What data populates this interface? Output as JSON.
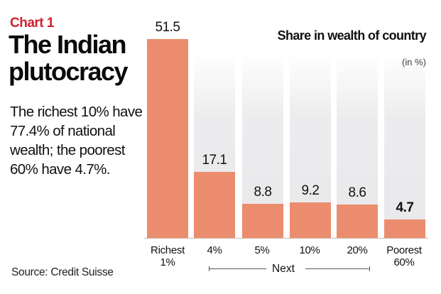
{
  "header": {
    "kicker": "Chart 1",
    "title": "The Indian plutocracy",
    "description": "The richest 10% have 77.4% of national wealth; the poorest 60% have 4.7%."
  },
  "source": "Source: Credit Suisse",
  "colors": {
    "kicker": "#d0202e",
    "bar": "#ec8c6e",
    "background_column": "#ececee"
  },
  "chart_data": {
    "type": "bar",
    "title": "Share in wealth of country",
    "unit_label": "(in %)",
    "categories": [
      "Richest 1%",
      "4%",
      "5%",
      "10%",
      "20%",
      "Poorest 60%"
    ],
    "values": [
      51.5,
      17.1,
      8.8,
      9.2,
      8.6,
      4.7
    ],
    "value_labels": [
      "51.5",
      "17.1",
      "8.8",
      "9.2",
      "8.6",
      "4.7"
    ],
    "highlighted": [
      "Poorest 60%"
    ],
    "group_annotation": {
      "label": "Next",
      "spans": [
        "4%",
        "5%",
        "10%",
        "20%"
      ]
    },
    "xlabel": "",
    "ylabel": "Share in wealth of country (in %)",
    "ylim": [
      0,
      51.5
    ],
    "grid": false,
    "legend_position": "top-right"
  },
  "xlabels": {
    "c0_line1": "Richest",
    "c0_line2": "1%",
    "c1": "4%",
    "c2": "5%",
    "c3": "10%",
    "c4": "20%",
    "c5_line1": "Poorest",
    "c5_line2": "60%"
  },
  "annotation": {
    "next": "Next"
  }
}
